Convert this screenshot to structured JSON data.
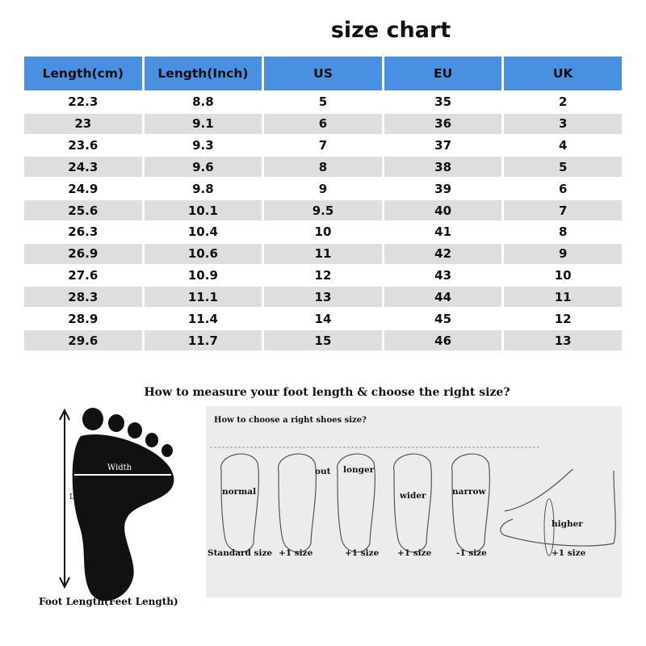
{
  "title": "size chart",
  "table": {
    "headers": [
      "Length(cm)",
      "Length(Inch)",
      "US",
      "EU",
      "UK"
    ],
    "rows": [
      [
        "22.3",
        "8.8",
        "5",
        "35",
        "2"
      ],
      [
        "23",
        "9.1",
        "6",
        "36",
        "3"
      ],
      [
        "23.6",
        "9.3",
        "7",
        "37",
        "4"
      ],
      [
        "24.3",
        "9.6",
        "8",
        "38",
        "5"
      ],
      [
        "24.9",
        "9.8",
        "9",
        "39",
        "6"
      ],
      [
        "25.6",
        "10.1",
        "9.5",
        "40",
        "7"
      ],
      [
        "26.3",
        "10.4",
        "10",
        "41",
        "8"
      ],
      [
        "26.9",
        "10.6",
        "11",
        "42",
        "9"
      ],
      [
        "27.6",
        "10.9",
        "12",
        "43",
        "10"
      ],
      [
        "28.3",
        "11.1",
        "13",
        "44",
        "11"
      ],
      [
        "28.9",
        "11.4",
        "14",
        "45",
        "12"
      ],
      [
        "29.6",
        "11.7",
        "15",
        "46",
        "13"
      ]
    ],
    "header_color": "#4a90e2",
    "alt_row_color": "#dedede"
  },
  "measure": {
    "heading": "How to measure your foot length & choose the right size?",
    "width_label": "Width",
    "length_label": "Length",
    "caption": "Foot Length(Feet Length)"
  },
  "choose": {
    "heading": "How to choose a right shoes size?",
    "feet": [
      {
        "label": "normal",
        "size": "Standard size"
      },
      {
        "label": "out",
        "size": "+1 size"
      },
      {
        "label": "longer",
        "size": "+1 size"
      },
      {
        "label": "wider",
        "size": "+1 size"
      },
      {
        "label": "narrow",
        "size": "-1 size"
      },
      {
        "label": "higher",
        "size": "+1 size"
      }
    ]
  }
}
